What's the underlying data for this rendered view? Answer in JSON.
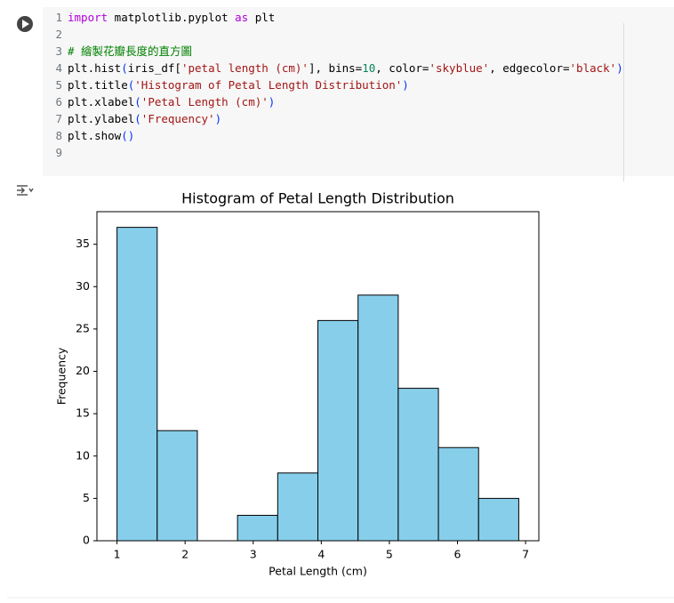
{
  "code": {
    "lines": [
      {
        "number": 1,
        "tokens": [
          {
            "text": "import",
            "color": "#af00db"
          },
          {
            "text": " matplotlib.pyplot ",
            "color": "#000000"
          },
          {
            "text": "as",
            "color": "#af00db"
          },
          {
            "text": " plt",
            "color": "#000000"
          }
        ]
      },
      {
        "number": 2,
        "tokens": []
      },
      {
        "number": 3,
        "tokens": [
          {
            "text": "# 繪製花瓣長度的直方圖",
            "color": "#008000"
          }
        ]
      },
      {
        "number": 4,
        "tokens": [
          {
            "text": "plt.hist",
            "color": "#000000"
          },
          {
            "text": "(",
            "color": "#0431fa"
          },
          {
            "text": "iris_df[",
            "color": "#000000"
          },
          {
            "text": "'petal length (cm)'",
            "color": "#a31515"
          },
          {
            "text": "], bins=",
            "color": "#000000"
          },
          {
            "text": "10",
            "color": "#098658"
          },
          {
            "text": ", color=",
            "color": "#000000"
          },
          {
            "text": "'skyblue'",
            "color": "#a31515"
          },
          {
            "text": ", edgecolor=",
            "color": "#000000"
          },
          {
            "text": "'black'",
            "color": "#a31515"
          },
          {
            "text": ")",
            "color": "#0431fa"
          }
        ]
      },
      {
        "number": 5,
        "tokens": [
          {
            "text": "plt.title",
            "color": "#000000"
          },
          {
            "text": "(",
            "color": "#0431fa"
          },
          {
            "text": "'Histogram of Petal Length Distribution'",
            "color": "#a31515"
          },
          {
            "text": ")",
            "color": "#0431fa"
          }
        ]
      },
      {
        "number": 6,
        "tokens": [
          {
            "text": "plt.xlabel",
            "color": "#000000"
          },
          {
            "text": "(",
            "color": "#0431fa"
          },
          {
            "text": "'Petal Length (cm)'",
            "color": "#a31515"
          },
          {
            "text": ")",
            "color": "#0431fa"
          }
        ]
      },
      {
        "number": 7,
        "tokens": [
          {
            "text": "plt.ylabel",
            "color": "#000000"
          },
          {
            "text": "(",
            "color": "#0431fa"
          },
          {
            "text": "'Frequency'",
            "color": "#a31515"
          },
          {
            "text": ")",
            "color": "#0431fa"
          }
        ]
      },
      {
        "number": 8,
        "tokens": [
          {
            "text": "plt.show",
            "color": "#000000"
          },
          {
            "text": "()",
            "color": "#0431fa"
          }
        ]
      },
      {
        "number": 9,
        "tokens": []
      }
    ]
  },
  "chart_data": {
    "type": "histogram",
    "title": "Histogram of Petal Length Distribution",
    "x_label": "Petal Length (cm)",
    "y_label": "Frequency",
    "bins": [
      1.0,
      1.59,
      2.18,
      2.77,
      3.36,
      3.95,
      4.54,
      5.13,
      5.72,
      6.31,
      6.9
    ],
    "counts": [
      37,
      13,
      0,
      3,
      8,
      26,
      29,
      18,
      11,
      5
    ],
    "color": "#87ceeb",
    "edgecolor": "#000000",
    "xlim": [
      0.705,
      7.195
    ],
    "xticks": [
      1,
      2,
      3,
      4,
      5,
      6,
      7
    ],
    "ylim": [
      0,
      38.85
    ],
    "yticks": [
      0,
      5,
      10,
      15,
      20,
      25,
      30,
      35
    ]
  }
}
